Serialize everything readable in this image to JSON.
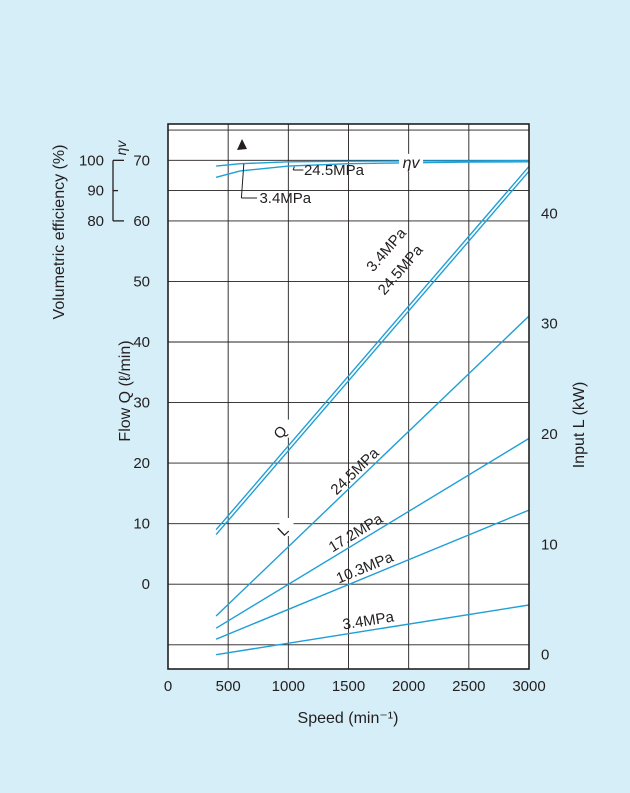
{
  "chart_data": {
    "type": "line",
    "xlabel": "Speed (min⁻¹)",
    "x_ticks": [
      0,
      500,
      1000,
      1500,
      2000,
      2500,
      3000
    ],
    "xlim": [
      0,
      3000
    ],
    "flow_axis": {
      "label": "Flow Q (ℓ/min)",
      "ticks": [
        0,
        10,
        20,
        30,
        40,
        50,
        60,
        70
      ],
      "range": [
        -14,
        76
      ]
    },
    "efficiency_axis": {
      "label": "Volumetric efficiency (%)",
      "symbol": "ηv",
      "ticks": [
        80,
        90,
        100
      ],
      "range": [
        80,
        100
      ]
    },
    "input_axis": {
      "label": "Input L (kW)",
      "ticks": [
        0,
        10,
        20,
        30,
        40
      ],
      "range": [
        -1.3,
        48.1
      ]
    },
    "groups": [
      {
        "label": "ηv",
        "axis": "efficiency",
        "series": [
          {
            "name": "3.4MPa",
            "x": [
              400,
              600,
              1000,
              1500,
              2000,
              2500,
              3000
            ],
            "y": [
              98.1,
              98.9,
              99.5,
              99.7,
              99.8,
              99.85,
              99.9
            ]
          },
          {
            "name": "24.5MPa",
            "x": [
              400,
              600,
              1000,
              1500,
              2000,
              2500,
              3000
            ],
            "y": [
              94.4,
              96.5,
              98.1,
              98.9,
              99.2,
              99.4,
              99.5
            ]
          }
        ]
      },
      {
        "label": "Q",
        "axis": "flow",
        "series": [
          {
            "name": "3.4MPa",
            "x": [
              400,
              3000
            ],
            "y": [
              9,
              69
            ]
          },
          {
            "name": "24.5MPa",
            "x": [
              400,
              3000
            ],
            "y": [
              8.2,
              68.2
            ]
          }
        ]
      },
      {
        "label": "L",
        "axis": "input",
        "series": [
          {
            "name": "24.5MPa",
            "x": [
              400,
              3000
            ],
            "y": [
              3.5,
              30.7
            ]
          },
          {
            "name": "17.2MPa",
            "x": [
              400,
              3000
            ],
            "y": [
              2.4,
              19.6
            ]
          },
          {
            "name": "10.3MPa",
            "x": [
              400,
              3000
            ],
            "y": [
              1.4,
              13.1
            ]
          },
          {
            "name": "3.4MPa",
            "x": [
              400,
              3000
            ],
            "y": [
              0,
              4.5
            ]
          }
        ]
      }
    ],
    "colors": {
      "line": "#1f9fd6",
      "grid": "#231f20",
      "background": "#d6eef8",
      "plot": "#ffffff"
    }
  }
}
